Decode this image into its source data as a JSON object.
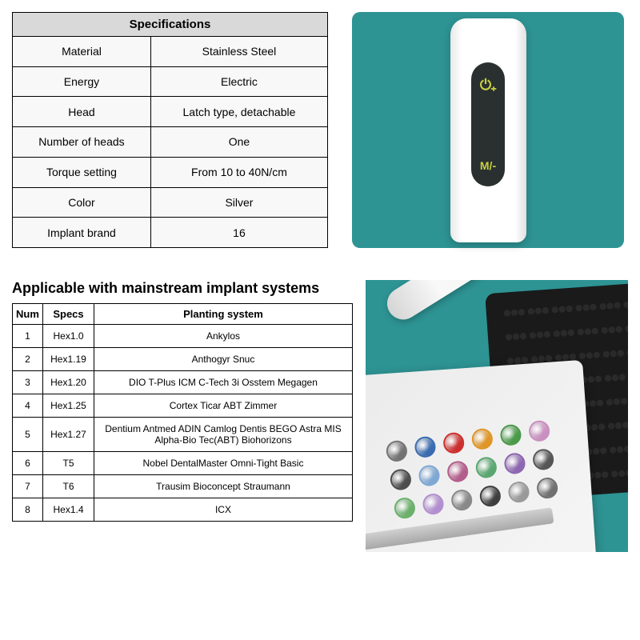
{
  "specs": {
    "title": "Specifications",
    "rows": [
      {
        "label": "Material",
        "value": "Stainless Steel"
      },
      {
        "label": "Energy",
        "value": "Electric"
      },
      {
        "label": "Head",
        "value": "Latch type, detachable"
      },
      {
        "label": "Number of heads",
        "value": "One"
      },
      {
        "label": "Torque setting",
        "value": "From 10 to 40N/cm"
      },
      {
        "label": "Color",
        "value": "Silver"
      },
      {
        "label": "Implant brand",
        "value": "16"
      }
    ]
  },
  "device": {
    "panel_bg": "#2e9393",
    "body_color": "#ffffff",
    "screen_color": "#2a3030",
    "icon_color": "#c8d040",
    "top_icon": "⏻₊",
    "bottom_icon": "M/-"
  },
  "implant": {
    "heading": "Applicable with mainstream implant systems",
    "columns": [
      "Num",
      "Specs",
      "Planting system"
    ],
    "rows": [
      {
        "num": "1",
        "specs": "Hex1.0",
        "system": "Ankylos"
      },
      {
        "num": "2",
        "specs": "Hex1.19",
        "system": "Anthogyr Snuc"
      },
      {
        "num": "3",
        "specs": "Hex1.20",
        "system": "DIO T-Plus ICM C-Tech 3i Osstem Megagen"
      },
      {
        "num": "4",
        "specs": "Hex1.25",
        "system": "Cortex Ticar ABT Zimmer"
      },
      {
        "num": "5",
        "specs": "Hex1.27",
        "system": "Dentium Antmed ADIN Camlog Dentis BEGO Astra MIS Alpha-Bio Tec(ABT) Biohorizons"
      },
      {
        "num": "6",
        "specs": "T5",
        "system": "Nobel DentalMaster Omni-Tight Basic"
      },
      {
        "num": "7",
        "specs": "T6",
        "system": "Trausim Bioconcept Straumann"
      },
      {
        "num": "8",
        "specs": "Hex1.4",
        "system": "ICX"
      }
    ]
  },
  "kit": {
    "panel_bg": "#2e9393",
    "bit_colors": [
      "#737373",
      "#3a6bb0",
      "#cc2f2f",
      "#e09525",
      "#4a9a4a",
      "#c98fc0",
      "#4d4d4d",
      "#7fa7d4",
      "#b35d8a",
      "#5aa670",
      "#8c66b0",
      "#555555",
      "#6bb06b",
      "#b28fd0",
      "#888888",
      "#3e3e3e",
      "#999999",
      "#707070"
    ]
  },
  "table_styles": {
    "header_bg": "#d9d9d9",
    "cell_bg": "#f8f8f8",
    "border_color": "#000000",
    "font_size_header": 15,
    "font_size_cell": 14
  }
}
